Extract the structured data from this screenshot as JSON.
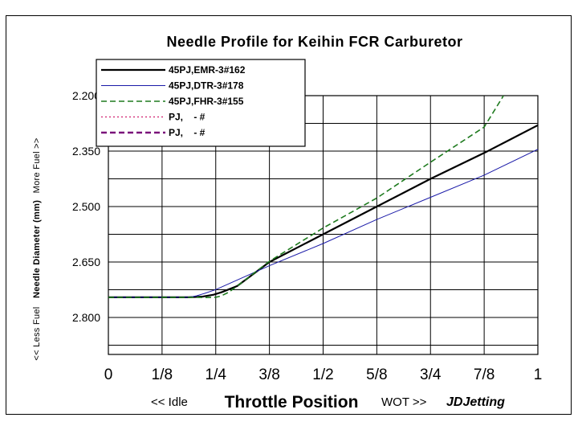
{
  "chart_data": {
    "type": "line",
    "title": "Needle Profile for Keihin FCR Carburetor",
    "xlabel": "Throttle Position",
    "ylabel_parts": [
      "<< Less Fuel",
      "Needle Diameter (mm)",
      "More Fuel >>"
    ],
    "x_ticks": [
      "0",
      "1/8",
      "1/4",
      "3/8",
      "1/2",
      "5/8",
      "3/4",
      "7/8",
      "1"
    ],
    "y_ticks": [
      "2.200",
      "2.350",
      "2.500",
      "2.650",
      "2.800"
    ],
    "y_axis_inverted": true,
    "xlim": [
      0,
      1
    ],
    "ylim": [
      2.9,
      2.2
    ],
    "grid": true,
    "legend_position": "top-left",
    "annotations": {
      "idle_label": "<< Idle",
      "wot_label": "WOT >>",
      "brand": "JDJetting"
    },
    "series": [
      {
        "name": "45PJ,EMR-3#162",
        "color": "#000000",
        "style": "solid-thick",
        "x": [
          0,
          0.1875,
          0.22,
          0.245,
          0.265,
          0.3,
          0.375,
          0.5,
          0.625,
          0.75,
          0.875,
          1.0
        ],
        "y": [
          2.7455,
          2.7455,
          2.7435,
          2.7385,
          2.731,
          2.715,
          2.65,
          2.575,
          2.5,
          2.425,
          2.355,
          2.28
        ]
      },
      {
        "name": "45PJ,DTR-3#178",
        "color": "#1a1aa8",
        "style": "solid-thin",
        "x": [
          0,
          0.1875,
          0.205,
          0.225,
          0.25,
          0.375,
          0.5,
          0.625,
          0.75,
          0.875,
          1.0
        ],
        "y": [
          2.7455,
          2.7455,
          2.7415,
          2.7345,
          2.7245,
          2.66,
          2.6,
          2.535,
          2.475,
          2.415,
          2.345
        ]
      },
      {
        "name": "45PJ,FHR-3#155",
        "color": "#1e7a1e",
        "style": "dashed",
        "x": [
          0,
          0.1875,
          0.2,
          0.225,
          0.25,
          0.262,
          0.28,
          0.3,
          0.375,
          0.5,
          0.625,
          0.75,
          0.875,
          0.92
        ],
        "y": [
          2.7455,
          2.7455,
          2.7455,
          2.746,
          2.7455,
          2.742,
          2.732,
          2.715,
          2.648,
          2.558,
          2.477,
          2.38,
          2.285,
          2.2
        ]
      },
      {
        "name": "PJ,    - #",
        "color": "#d01e6e",
        "style": "dotted",
        "x": [],
        "y": []
      },
      {
        "name": "PJ,    - #",
        "color": "#7a127a",
        "style": "dashed-thick",
        "x": [],
        "y": []
      }
    ]
  }
}
